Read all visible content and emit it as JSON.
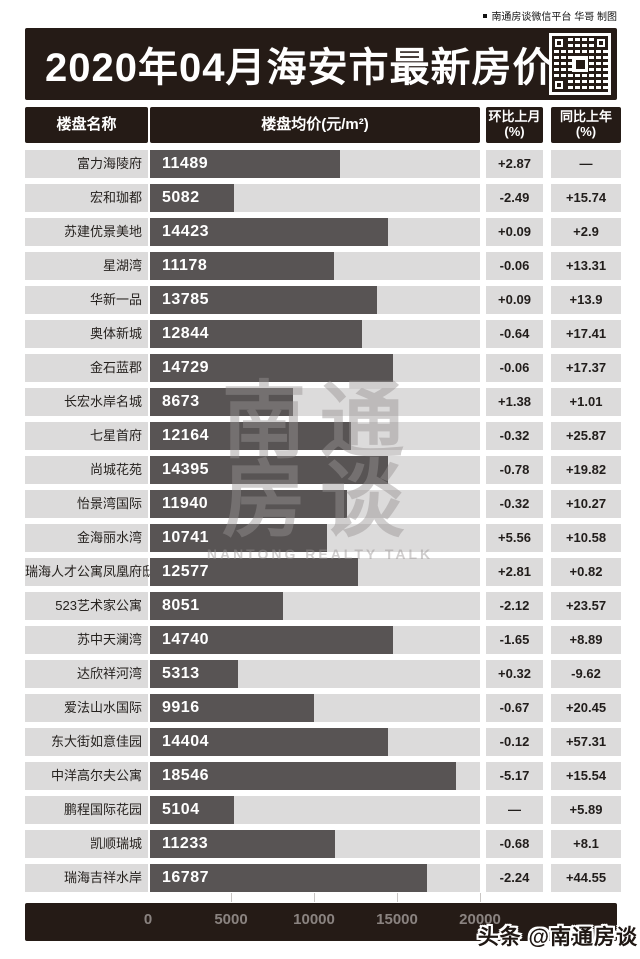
{
  "credit": {
    "text": "南通房谈微信平台 华哥 制图"
  },
  "header": {
    "title": "2020年04月海安市最新房价"
  },
  "columns": {
    "name": "楼盘名称",
    "price": "楼盘均价(元/m²)",
    "mom_line1": "环比上月",
    "mom_line2": "(%)",
    "yoy_line1": "同比上年",
    "yoy_line2": "(%)"
  },
  "watermark": {
    "chars_line1": "南通",
    "chars_line2": "房谈",
    "subtitle": "NANTONG REALTY TALK"
  },
  "footer": {
    "logo": "头条 @南通房谈"
  },
  "colors": {
    "dark": "#251b16",
    "bar": "#585454",
    "cell_bg": "#dcdbdb",
    "value_text": "#ffffff",
    "axis_text": "#8a8380"
  },
  "chart_data": {
    "type": "bar",
    "title": "2020年04月海安市最新房价",
    "xlabel": "楼盘均价(元/m²)",
    "xlim": [
      0,
      20000
    ],
    "axis_ticks": [
      "0",
      "5000",
      "10000",
      "15000",
      "20000"
    ],
    "legend": null,
    "columns": [
      "楼盘名称",
      "楼盘均价(元/m²)",
      "环比上月(%)",
      "同比上年(%)"
    ],
    "rows": [
      {
        "name": "富力海陵府",
        "price": 11489,
        "mom": "+2.87",
        "yoy": "—"
      },
      {
        "name": "宏和珈都",
        "price": 5082,
        "mom": "-2.49",
        "yoy": "+15.74"
      },
      {
        "name": "苏建优景美地",
        "price": 14423,
        "mom": "+0.09",
        "yoy": "+2.9"
      },
      {
        "name": "星湖湾",
        "price": 11178,
        "mom": "-0.06",
        "yoy": "+13.31"
      },
      {
        "name": "华新一品",
        "price": 13785,
        "mom": "+0.09",
        "yoy": "+13.9"
      },
      {
        "name": "奥体新城",
        "price": 12844,
        "mom": "-0.64",
        "yoy": "+17.41"
      },
      {
        "name": "金石蓝郡",
        "price": 14729,
        "mom": "-0.06",
        "yoy": "+17.37"
      },
      {
        "name": "长宏水岸名城",
        "price": 8673,
        "mom": "+1.38",
        "yoy": "+1.01"
      },
      {
        "name": "七星首府",
        "price": 12164,
        "mom": "-0.32",
        "yoy": "+25.87"
      },
      {
        "name": "尚城花苑",
        "price": 14395,
        "mom": "-0.78",
        "yoy": "+19.82"
      },
      {
        "name": "怡景湾国际",
        "price": 11940,
        "mom": "-0.32",
        "yoy": "+10.27"
      },
      {
        "name": "金海丽水湾",
        "price": 10741,
        "mom": "+5.56",
        "yoy": "+10.58"
      },
      {
        "name": "瑞海人才公寓凤凰府邸",
        "price": 12577,
        "mom": "+2.81",
        "yoy": "+0.82"
      },
      {
        "name": "523艺术家公寓",
        "price": 8051,
        "mom": "-2.12",
        "yoy": "+23.57"
      },
      {
        "name": "苏中天澜湾",
        "price": 14740,
        "mom": "-1.65",
        "yoy": "+8.89"
      },
      {
        "name": "达欣祥河湾",
        "price": 5313,
        "mom": "+0.32",
        "yoy": "-9.62"
      },
      {
        "name": "爱法山水国际",
        "price": 9916,
        "mom": "-0.67",
        "yoy": "+20.45"
      },
      {
        "name": "东大街如意佳园",
        "price": 14404,
        "mom": "-0.12",
        "yoy": "+57.31"
      },
      {
        "name": "中洋高尔夫公寓",
        "price": 18546,
        "mom": "-5.17",
        "yoy": "+15.54"
      },
      {
        "name": "鹏程国际花园",
        "price": 5104,
        "mom": "—",
        "yoy": "+5.89"
      },
      {
        "name": "凯顺瑞城",
        "price": 11233,
        "mom": "-0.68",
        "yoy": "+8.1"
      },
      {
        "name": "瑞海吉祥水岸",
        "price": 16787,
        "mom": "-2.24",
        "yoy": "+44.55"
      }
    ]
  }
}
